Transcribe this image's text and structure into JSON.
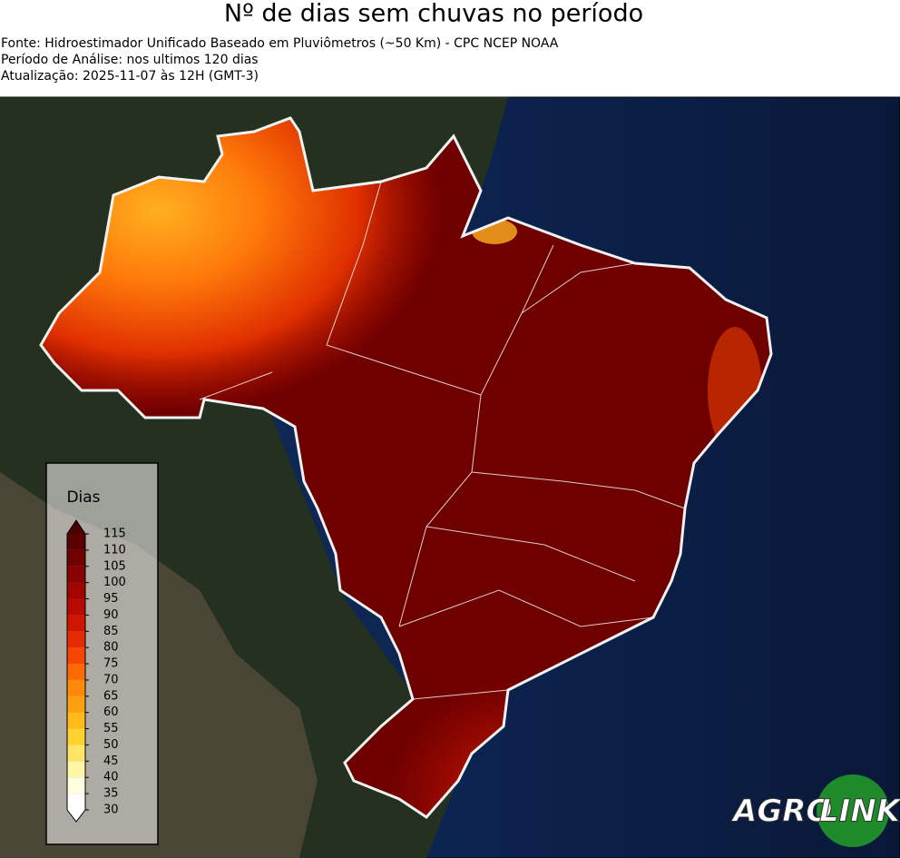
{
  "header": {
    "title": "Nº de dias sem chuvas no período",
    "lines": [
      "Fonte: Hidroestimador Unificado Baseado em Pluviômetros (~50 Km) - CPC NCEP NOAA",
      "Período de Análise: nos ultimos 120 dias",
      "Atualização: 2025-11-07 às 12H (GMT-3)"
    ]
  },
  "legend": {
    "title": "Dias",
    "ticks": [
      30,
      35,
      40,
      45,
      50,
      55,
      60,
      65,
      70,
      75,
      80,
      85,
      90,
      95,
      100,
      105,
      110,
      115
    ],
    "colors": [
      "#ffffff",
      "#fffde0",
      "#fff5a8",
      "#ffe566",
      "#ffd230",
      "#ffbb1a",
      "#ffa010",
      "#ff8a0a",
      "#ff6a00",
      "#f54500",
      "#e62a00",
      "#d01500",
      "#b80a00",
      "#a00500",
      "#880000",
      "#700000",
      "#5a0000"
    ],
    "under_color": "#ffffff",
    "over_color": "#4a0000"
  },
  "logo": {
    "left": "AGRO",
    "right": "LINK"
  }
}
